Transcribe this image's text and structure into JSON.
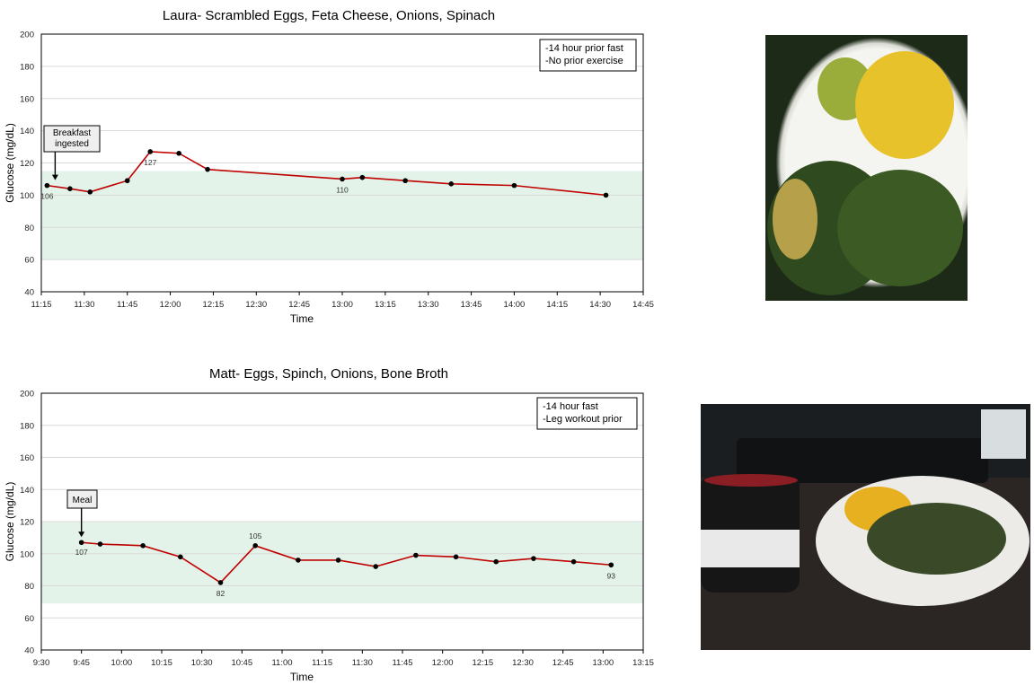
{
  "chart_data": [
    {
      "type": "line",
      "title": "Laura- Scrambled Eggs, Feta Cheese, Onions, Spinach",
      "xlabel": "Time",
      "ylabel": "Glucose (mg/dL)",
      "ylim": [
        40,
        200
      ],
      "yticks": [
        "40",
        "60",
        "80",
        "100",
        "120",
        "140",
        "160",
        "180",
        "200"
      ],
      "xticks": [
        "11:15",
        "11:30",
        "11:45",
        "12:00",
        "12:15",
        "12:30",
        "12:45",
        "13:00",
        "13:15",
        "13:30",
        "13:45",
        "14:00",
        "14:15",
        "14:30",
        "14:45"
      ],
      "xlim_minutes": [
        675,
        885
      ],
      "x_minutes": [
        677,
        685,
        692,
        705,
        713,
        723,
        733,
        780,
        787,
        802,
        818,
        840,
        872
      ],
      "values": [
        106,
        104,
        102,
        109,
        127,
        126,
        116,
        110,
        111,
        109,
        107,
        106,
        100
      ],
      "data_labels": [
        {
          "index": 0,
          "text": "106"
        },
        {
          "index": 4,
          "text": "127"
        },
        {
          "index": 7,
          "text": "110"
        }
      ],
      "target_band": [
        60,
        115
      ],
      "note": [
        "-14 hour prior fast",
        "-No prior exercise"
      ],
      "callout": {
        "lines": [
          "Breakfast",
          "ingested"
        ],
        "index": 0
      },
      "line_color": "#c00000",
      "band_color": "#e3f3e9",
      "grid": true
    },
    {
      "type": "line",
      "title": "Matt- Eggs, Spinch, Onions, Bone Broth",
      "xlabel": "Time",
      "ylabel": "Glucose (mg/dL)",
      "ylim": [
        40,
        200
      ],
      "yticks": [
        "40",
        "60",
        "80",
        "100",
        "120",
        "140",
        "160",
        "180",
        "200"
      ],
      "xticks": [
        "9:30",
        "9:45",
        "10:00",
        "10:15",
        "10:30",
        "10:45",
        "11:00",
        "11:15",
        "11:30",
        "11:45",
        "12:00",
        "12:15",
        "12:30",
        "12:45",
        "13:00",
        "13:15"
      ],
      "xlim_minutes": [
        570,
        795
      ],
      "x_minutes": [
        585,
        592,
        608,
        622,
        637,
        650,
        666,
        681,
        695,
        710,
        725,
        740,
        754,
        769,
        783
      ],
      "values": [
        107,
        106,
        105,
        98,
        82,
        105,
        96,
        96,
        92,
        99,
        98,
        95,
        97,
        95,
        93
      ],
      "data_labels": [
        {
          "index": 0,
          "text": "107"
        },
        {
          "index": 4,
          "text": "82"
        },
        {
          "index": 5,
          "text": "105"
        },
        {
          "index": 14,
          "text": "93"
        }
      ],
      "target_band": [
        69,
        120
      ],
      "note": [
        "-14 hour fast",
        "-Leg workout prior"
      ],
      "callout": {
        "lines": [
          "Meal"
        ],
        "index": 0
      },
      "line_color": "#c00000",
      "band_color": "#e3f3e9",
      "grid": true
    }
  ]
}
